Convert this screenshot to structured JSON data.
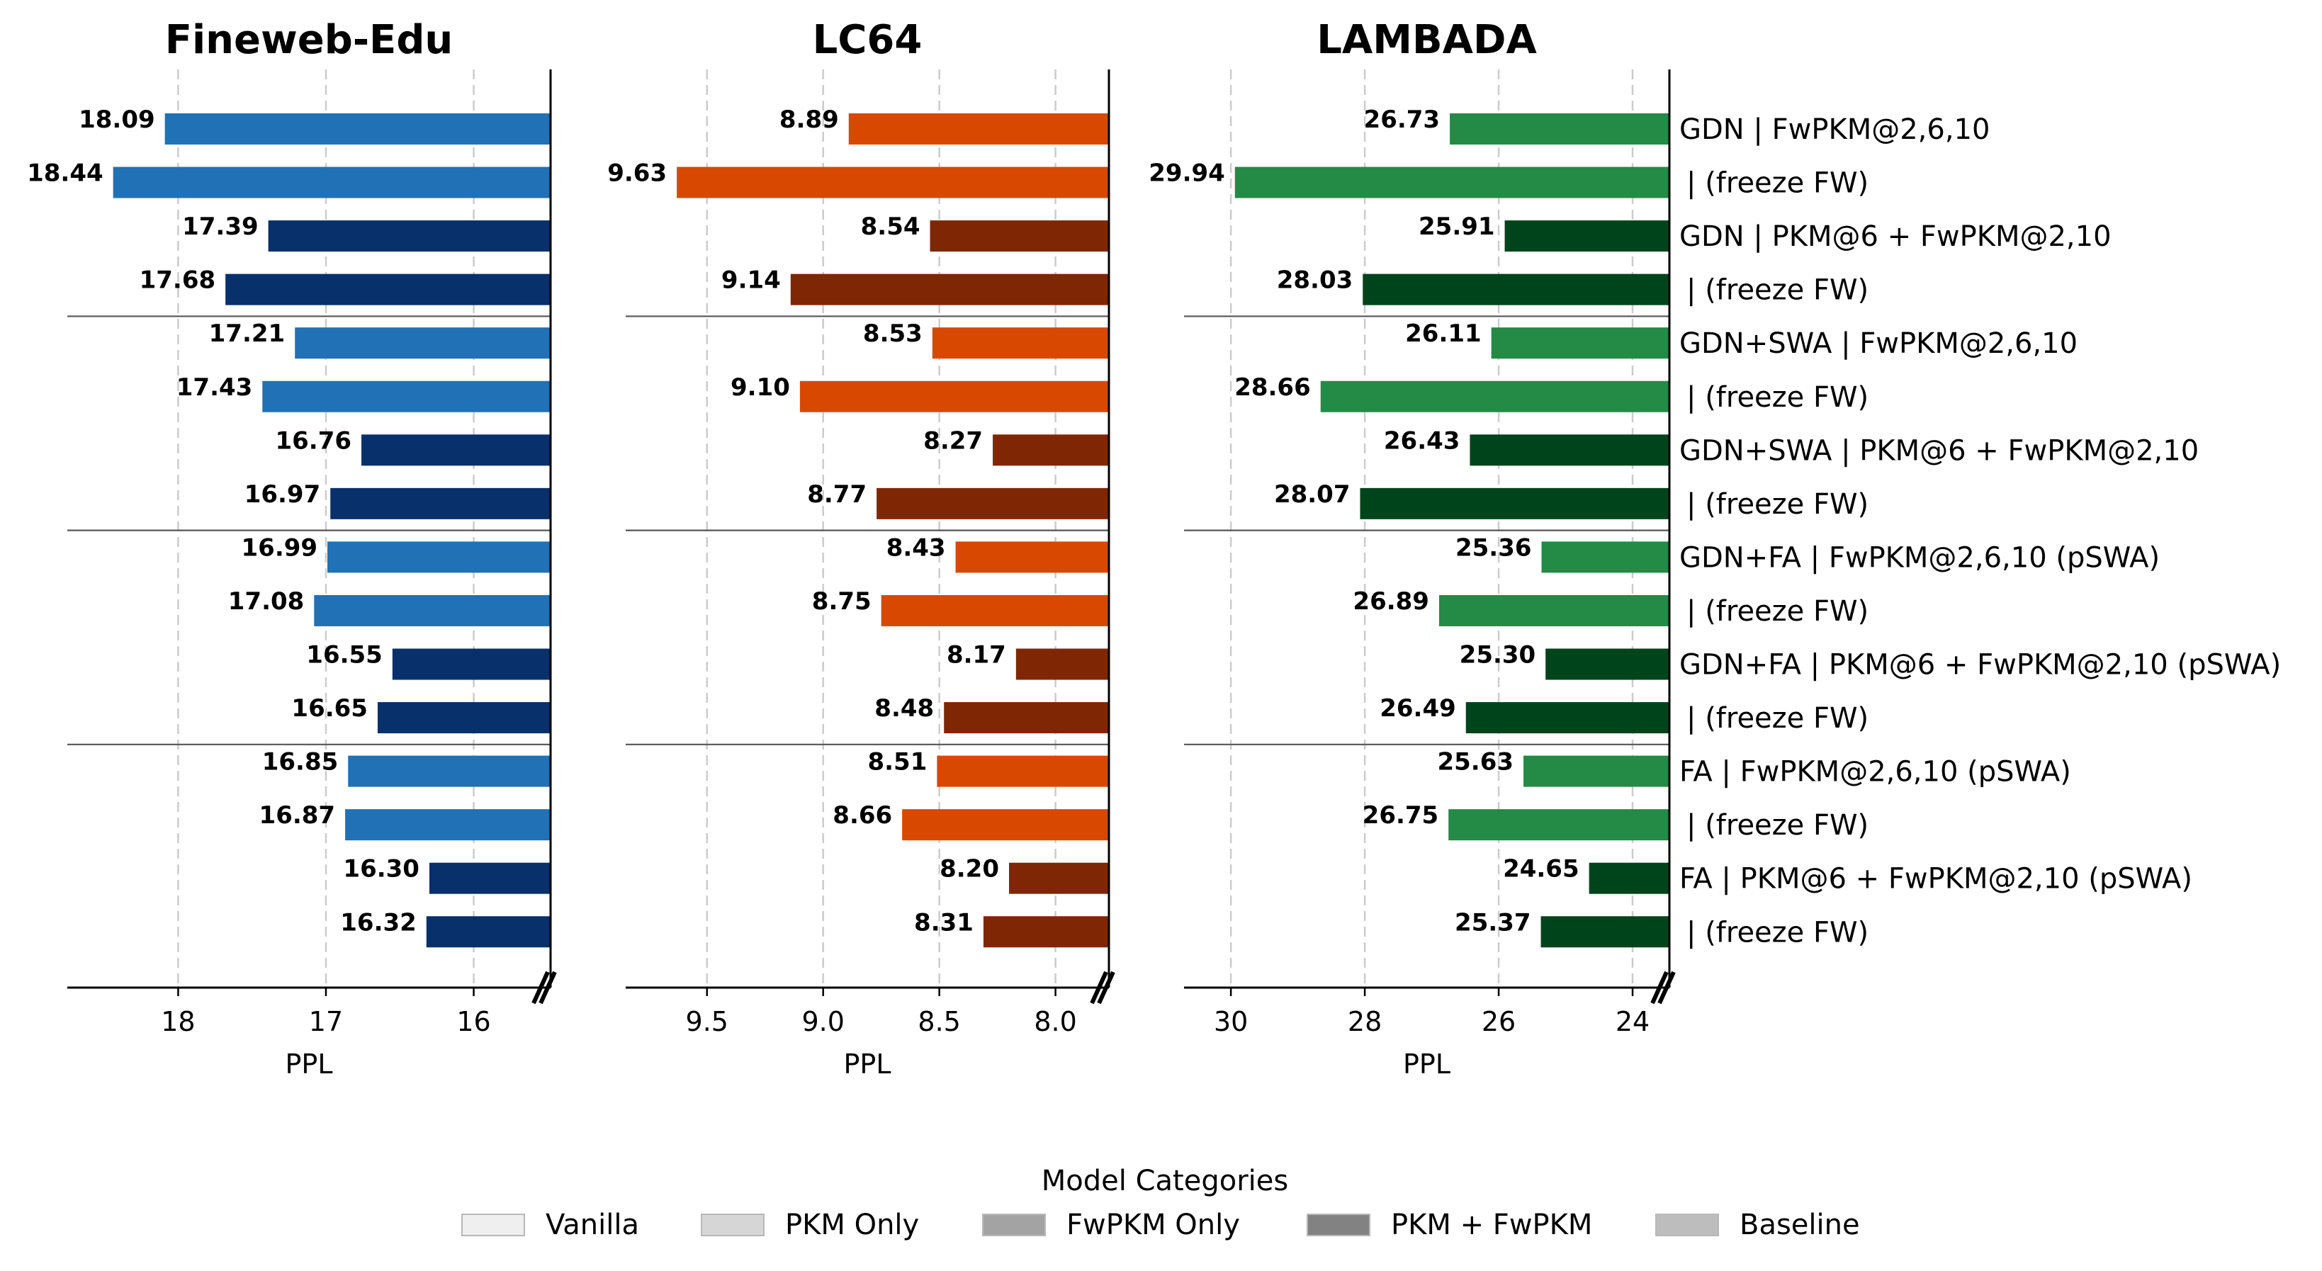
{
  "chart_data": {
    "type": "bar",
    "orientation": "horizontal",
    "row_labels": [
      "GDN | FwPKM@2,6,10",
      "| (freeze FW)",
      "GDN | PKM@6 + FwPKM@2,10",
      "| (freeze FW)",
      "GDN+SWA | FwPKM@2,6,10",
      "| (freeze FW)",
      "GDN+SWA | PKM@6 + FwPKM@2,10",
      "| (freeze FW)",
      "GDN+FA | FwPKM@2,6,10 (pSWA)",
      "| (freeze FW)",
      "GDN+FA | PKM@6 + FwPKM@2,10 (pSWA)",
      "| (freeze FW)",
      "FA | FwPKM@2,6,10 (pSWA)",
      "| (freeze FW)",
      "FA | PKM@6 + FwPKM@2,10 (pSWA)",
      "| (freeze FW)"
    ],
    "row_kind": [
      "light",
      "light",
      "dark",
      "dark",
      "light",
      "light",
      "dark",
      "dark",
      "light",
      "light",
      "dark",
      "dark",
      "light",
      "light",
      "dark",
      "dark"
    ],
    "group_separators_after": [
      4,
      8,
      12
    ],
    "panels": [
      {
        "title": "Fineweb-Edu",
        "xlabel": "PPL",
        "xlim": [
          18.75,
          15.48
        ],
        "xticks": [
          18,
          17,
          16
        ],
        "tick_labels": [
          "18",
          "17",
          "16"
        ],
        "values": [
          18.09,
          18.44,
          17.39,
          17.68,
          17.21,
          17.43,
          16.76,
          16.97,
          16.99,
          17.08,
          16.55,
          16.65,
          16.85,
          16.87,
          16.3,
          16.32
        ],
        "value_labels": [
          "18.09",
          "18.44",
          "17.39",
          "17.68",
          "17.21",
          "17.43",
          "16.76",
          "16.97",
          "16.99",
          "17.08",
          "16.55",
          "16.65",
          "16.85",
          "16.87",
          "16.30",
          "16.32"
        ],
        "colors": {
          "light": "#2071b5",
          "dark": "#08306b"
        }
      },
      {
        "title": "LC64",
        "xlabel": "PPL",
        "xlim": [
          9.85,
          7.77
        ],
        "xticks": [
          9.5,
          9.0,
          8.5,
          8.0
        ],
        "tick_labels": [
          "9.5",
          "9.0",
          "8.5",
          "8.0"
        ],
        "values": [
          8.89,
          9.63,
          8.54,
          9.14,
          8.53,
          9.1,
          8.27,
          8.77,
          8.43,
          8.75,
          8.17,
          8.48,
          8.51,
          8.66,
          8.2,
          8.31
        ],
        "value_labels": [
          "8.89",
          "9.63",
          "8.54",
          "9.14",
          "8.53",
          "9.10",
          "8.27",
          "8.77",
          "8.43",
          "8.75",
          "8.17",
          "8.48",
          "8.51",
          "8.66",
          "8.20",
          "8.31"
        ],
        "colors": {
          "light": "#d94801",
          "dark": "#7f2704"
        }
      },
      {
        "title": "LAMBADA",
        "xlabel": "PPL",
        "xlim": [
          30.7,
          23.45
        ],
        "xticks": [
          30,
          28,
          26,
          24
        ],
        "tick_labels": [
          "30",
          "28",
          "26",
          "24"
        ],
        "values": [
          26.73,
          29.94,
          25.91,
          28.03,
          26.11,
          28.66,
          26.43,
          28.07,
          25.36,
          26.89,
          25.3,
          26.49,
          25.63,
          26.75,
          24.65,
          25.37
        ],
        "value_labels": [
          "26.73",
          "29.94",
          "25.91",
          "28.03",
          "26.11",
          "28.66",
          "26.43",
          "28.07",
          "25.36",
          "26.89",
          "25.30",
          "26.49",
          "25.63",
          "26.75",
          "24.65",
          "25.37"
        ],
        "colors": {
          "light": "#238b45",
          "dark": "#00441b"
        }
      }
    ],
    "legend": {
      "title": "Model Categories",
      "position": "bottom-center",
      "items": [
        {
          "label": "Vanilla",
          "color": "#efefef"
        },
        {
          "label": "PKM Only",
          "color": "#d6d6d6"
        },
        {
          "label": "FwPKM Only",
          "color": "#a3a3a3"
        },
        {
          "label": "PKM + FwPKM",
          "color": "#828282"
        },
        {
          "label": "Baseline",
          "color": "#bdbdbd"
        }
      ]
    }
  }
}
